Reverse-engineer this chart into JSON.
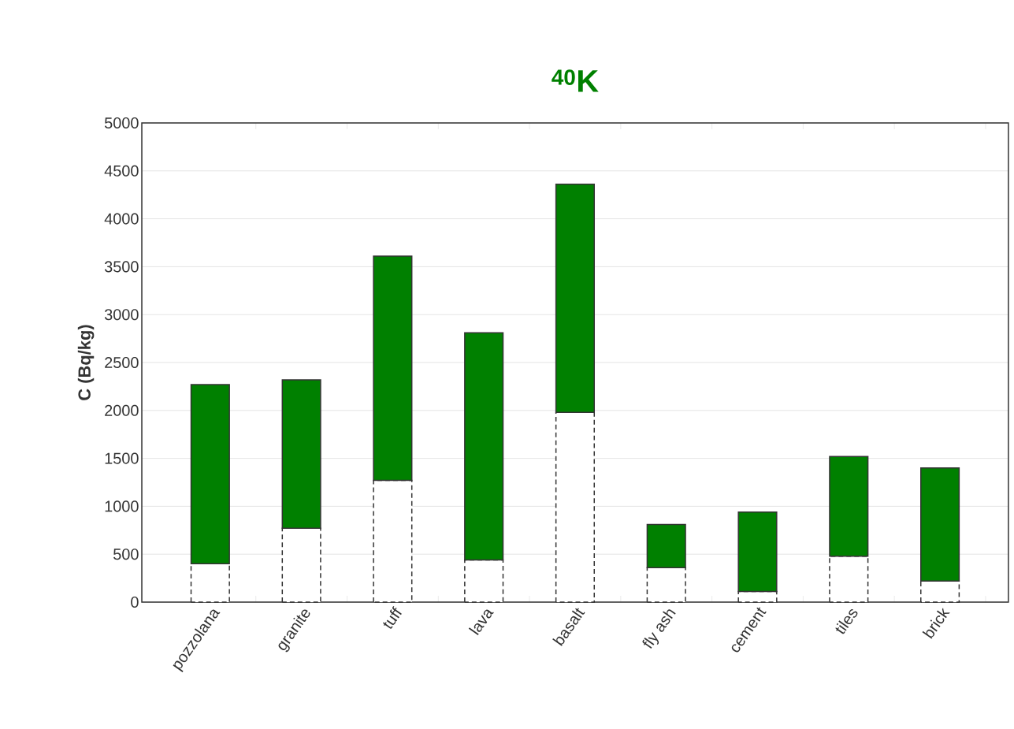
{
  "chart_data": {
    "type": "bar",
    "title": "$^{40}$K",
    "ylabel": "C (Bq/kg)",
    "stacked": true,
    "categories": [
      "pozzolana",
      "granite",
      "tuff",
      "lava",
      "basalt",
      "fly ash",
      "cement",
      "tiles",
      "brick"
    ],
    "series": [
      {
        "color": "#ffffff",
        "line_style": "dashed",
        "values": [
          400,
          770,
          1270,
          440,
          1980,
          360,
          110,
          480,
          220
        ]
      },
      {
        "color": "#008000",
        "values": [
          1870,
          1550,
          2340,
          2370,
          2380,
          450,
          830,
          1040,
          1180
        ]
      }
    ],
    "ylim": [
      0,
      5000
    ],
    "yticks": [
      0,
      500,
      1000,
      1500,
      2000,
      2500,
      3000,
      3500,
      4000,
      4500,
      5000
    ],
    "grid": "y"
  }
}
